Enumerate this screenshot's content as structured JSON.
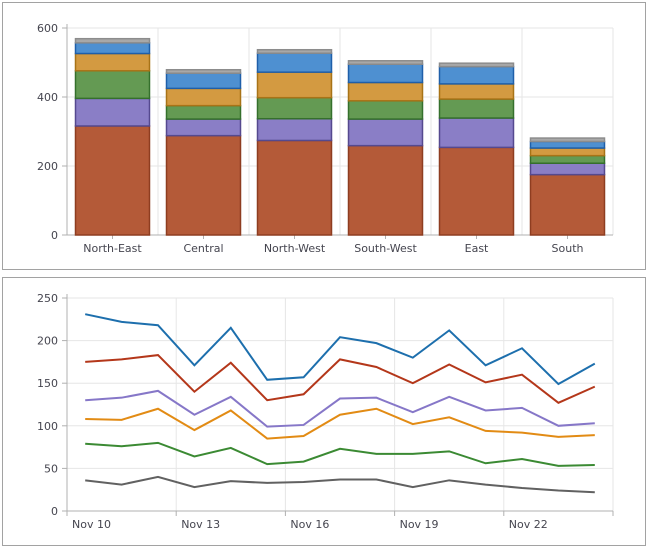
{
  "style": {
    "panel_border": "#a2a2a2",
    "background": "#ffffff",
    "grid_color": "#e6e6e6",
    "axis_color": "#b0b0b0",
    "label_color": "#45454f"
  },
  "chart_data": [
    {
      "type": "bar",
      "stacked": true,
      "orientation": "vertical",
      "title": "",
      "categories": [
        "North-East",
        "Central",
        "North-West",
        "South-West",
        "East",
        "South"
      ],
      "series": [
        {
          "name": "brown",
          "color": "#b45a38",
          "border_color": "#8e3d20",
          "values": [
            316,
            288,
            274,
            259,
            254,
            175
          ]
        },
        {
          "name": "purple",
          "color": "#8a7ec6",
          "border_color": "#55498f",
          "values": [
            80,
            48,
            63,
            77,
            85,
            33
          ]
        },
        {
          "name": "green",
          "color": "#649a53",
          "border_color": "#35702c",
          "values": [
            80,
            39,
            61,
            53,
            55,
            22
          ]
        },
        {
          "name": "orange",
          "color": "#d39a41",
          "border_color": "#a87317",
          "values": [
            50,
            50,
            74,
            53,
            44,
            22
          ]
        },
        {
          "name": "blue",
          "color": "#4e90d1",
          "border_color": "#1f5fa9",
          "values": [
            31,
            44,
            55,
            53,
            50,
            19
          ]
        },
        {
          "name": "gray",
          "color": "#a8a8a8",
          "border_color": "#8c8c8c",
          "values": [
            12,
            10,
            10,
            10,
            10,
            10
          ]
        }
      ],
      "totals": [
        569,
        479,
        537,
        505,
        498,
        281
      ],
      "ylim": [
        0,
        600
      ],
      "yticks": [
        0,
        200,
        400,
        600
      ],
      "grid": true,
      "legend": "none"
    },
    {
      "type": "line",
      "title": "",
      "x": [
        "Nov 10",
        "Nov 11",
        "Nov 12",
        "Nov 13",
        "Nov 14",
        "Nov 15",
        "Nov 16",
        "Nov 17",
        "Nov 18",
        "Nov 19",
        "Nov 20",
        "Nov 21",
        "Nov 22",
        "Nov 23",
        "Nov 24"
      ],
      "x_tick_labels": [
        "Nov 10",
        "Nov 13",
        "Nov 16",
        "Nov 19",
        "Nov 22"
      ],
      "x_tick_every": 3,
      "series": [
        {
          "name": "blue",
          "color": "#1d6fad",
          "values": [
            231,
            222,
            218,
            171,
            215,
            154,
            157,
            204,
            197,
            180,
            212,
            171,
            191,
            149,
            173
          ]
        },
        {
          "name": "red",
          "color": "#b4371a",
          "values": [
            175,
            178,
            183,
            140,
            174,
            130,
            137,
            178,
            169,
            150,
            172,
            151,
            160,
            127,
            146
          ]
        },
        {
          "name": "purple",
          "color": "#8677c8",
          "values": [
            130,
            133,
            141,
            113,
            134,
            99,
            101,
            132,
            133,
            116,
            134,
            118,
            121,
            100,
            103
          ]
        },
        {
          "name": "orange",
          "color": "#e28b14",
          "values": [
            108,
            107,
            120,
            95,
            118,
            85,
            88,
            113,
            120,
            102,
            110,
            94,
            92,
            87,
            89
          ]
        },
        {
          "name": "green",
          "color": "#3b8a33",
          "values": [
            79,
            76,
            80,
            64,
            74,
            55,
            58,
            73,
            67,
            67,
            70,
            56,
            61,
            53,
            54
          ]
        },
        {
          "name": "gray",
          "color": "#616161",
          "values": [
            36,
            31,
            40,
            28,
            35,
            33,
            34,
            37,
            37,
            28,
            36,
            31,
            27,
            24,
            22
          ]
        }
      ],
      "ylim": [
        0,
        250
      ],
      "yticks": [
        0,
        50,
        100,
        150,
        200,
        250
      ],
      "grid": true,
      "legend": "none"
    }
  ]
}
